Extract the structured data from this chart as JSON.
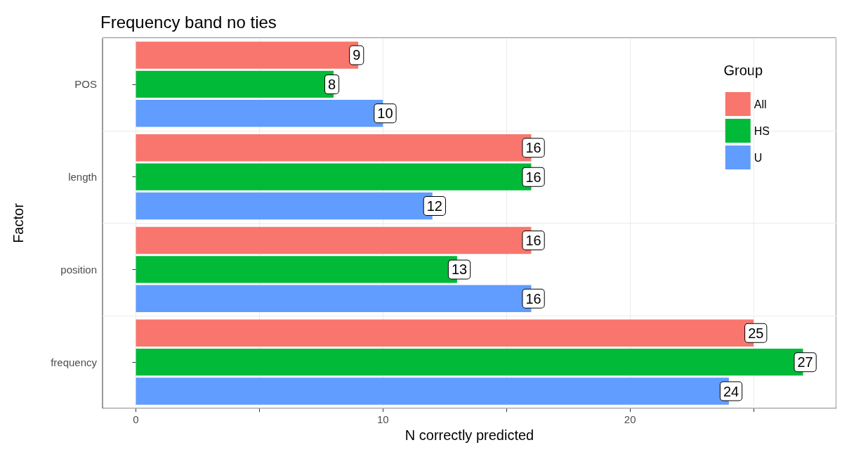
{
  "chart_data": {
    "type": "bar",
    "orientation": "horizontal",
    "title": "Frequency band no ties",
    "xlabel": "N correctly predicted",
    "ylabel": "Factor",
    "legend_title": "Group",
    "categories": [
      "POS",
      "length",
      "position",
      "frequency"
    ],
    "series": [
      {
        "name": "All",
        "color": "#f8766d",
        "values": [
          9,
          16,
          16,
          25
        ]
      },
      {
        "name": "HS",
        "color": "#00ba38",
        "values": [
          8,
          16,
          13,
          27
        ]
      },
      {
        "name": "U",
        "color": "#619cff",
        "values": [
          10,
          12,
          16,
          24
        ]
      }
    ],
    "xlim": [
      -1.35,
      28.35
    ],
    "xticks": [
      0,
      {
        "value": 5,
        "label": null
      },
      10,
      {
        "value": 15,
        "label": null
      },
      20,
      {
        "value": 25,
        "label": null
      }
    ],
    "grid": true,
    "legend": "top right",
    "data_labels": true
  }
}
